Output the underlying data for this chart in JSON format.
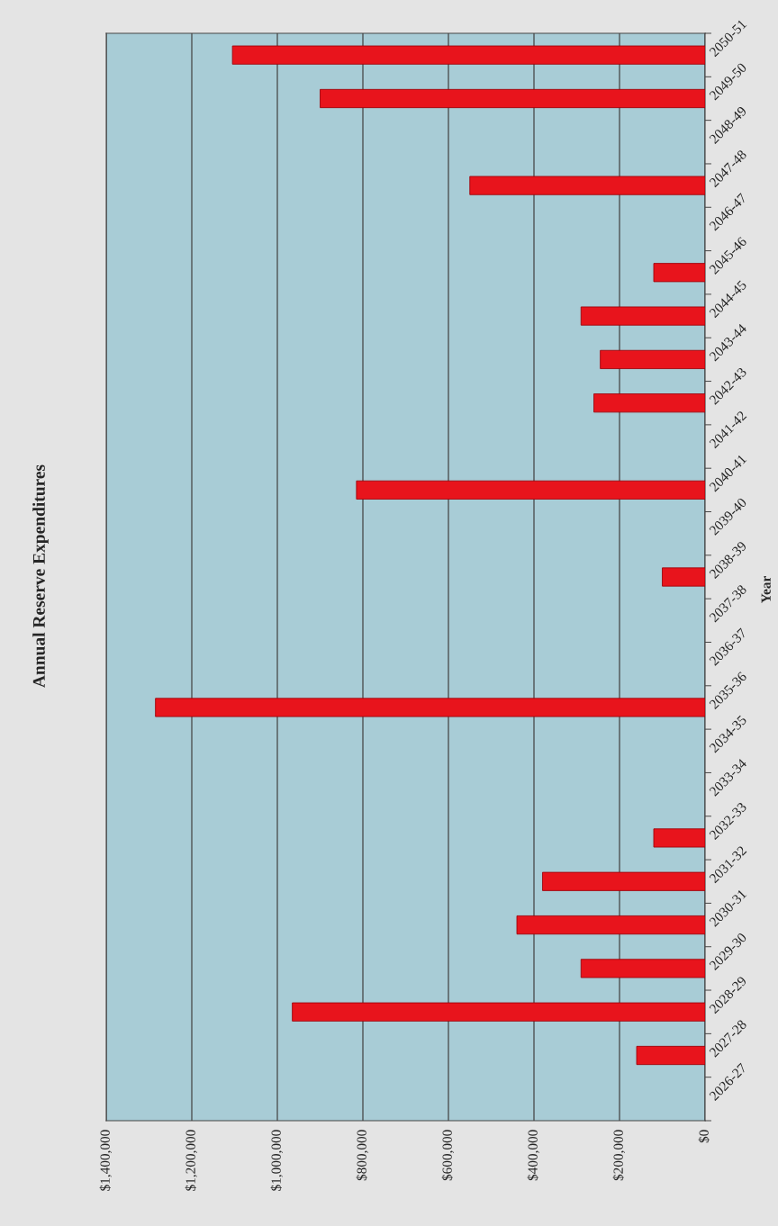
{
  "chart_data": {
    "type": "bar",
    "orientation": "horizontal",
    "title": "Annual Reserve Expenditures",
    "ylabel": "Year",
    "categories": [
      "2050-51",
      "2049-50",
      "2048-49",
      "2047-48",
      "2046-47",
      "2045-46",
      "2044-45",
      "2043-44",
      "2042-43",
      "2041-42",
      "2040-41",
      "2039-40",
      "2038-39",
      "2037-38",
      "2036-37",
      "2035-36",
      "2034-35",
      "2033-34",
      "2032-33",
      "2031-32",
      "2030-31",
      "2029-30",
      "2028-29",
      "2027-28",
      "2026-27"
    ],
    "values": [
      1105000,
      900000,
      null,
      550000,
      null,
      120000,
      290000,
      245000,
      260000,
      null,
      815000,
      null,
      100000,
      null,
      null,
      1285000,
      null,
      null,
      120000,
      380000,
      440000,
      290000,
      965000,
      160000,
      null
    ],
    "color": "#e8141c",
    "xlim": [
      1400000,
      0
    ],
    "xticks": [
      {
        "value": 1400000,
        "label": "$1,400,000"
      },
      {
        "value": 1200000,
        "label": "$1,200,000"
      },
      {
        "value": 1000000,
        "label": "$1,000,000"
      },
      {
        "value": 800000,
        "label": "$800,000"
      },
      {
        "value": 600000,
        "label": "$600,000"
      },
      {
        "value": 400000,
        "label": "$400,000"
      },
      {
        "value": 200000,
        "label": "$200,000"
      },
      {
        "value": 0,
        "label": "$0"
      }
    ],
    "grid": "x",
    "legend": false
  }
}
